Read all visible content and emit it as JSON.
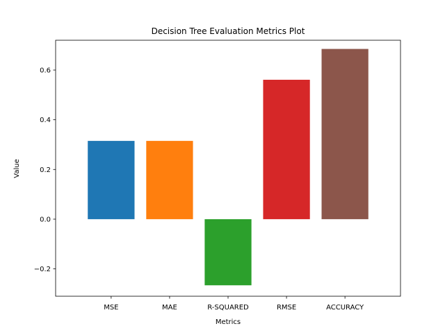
{
  "chart_data": {
    "type": "bar",
    "title": "Decision Tree Evaluation Metrics Plot",
    "xlabel": "Metrics",
    "ylabel": "Value",
    "categories": [
      "MSE",
      "MAE",
      "R-SQUARED",
      "RMSE",
      "ACCURACY"
    ],
    "values": [
      0.315,
      0.315,
      -0.266,
      0.561,
      0.685
    ],
    "colors": [
      "#1f77b4",
      "#ff7f0e",
      "#2ca02c",
      "#d62728",
      "#8c564b"
    ],
    "ylim": [
      -0.31,
      0.72
    ],
    "yticks": [
      -0.2,
      0.0,
      0.2,
      0.4,
      0.6
    ],
    "ytick_labels": [
      "−0.2",
      "0.0",
      "0.2",
      "0.4",
      "0.6"
    ],
    "grid": false,
    "legend": "none"
  }
}
